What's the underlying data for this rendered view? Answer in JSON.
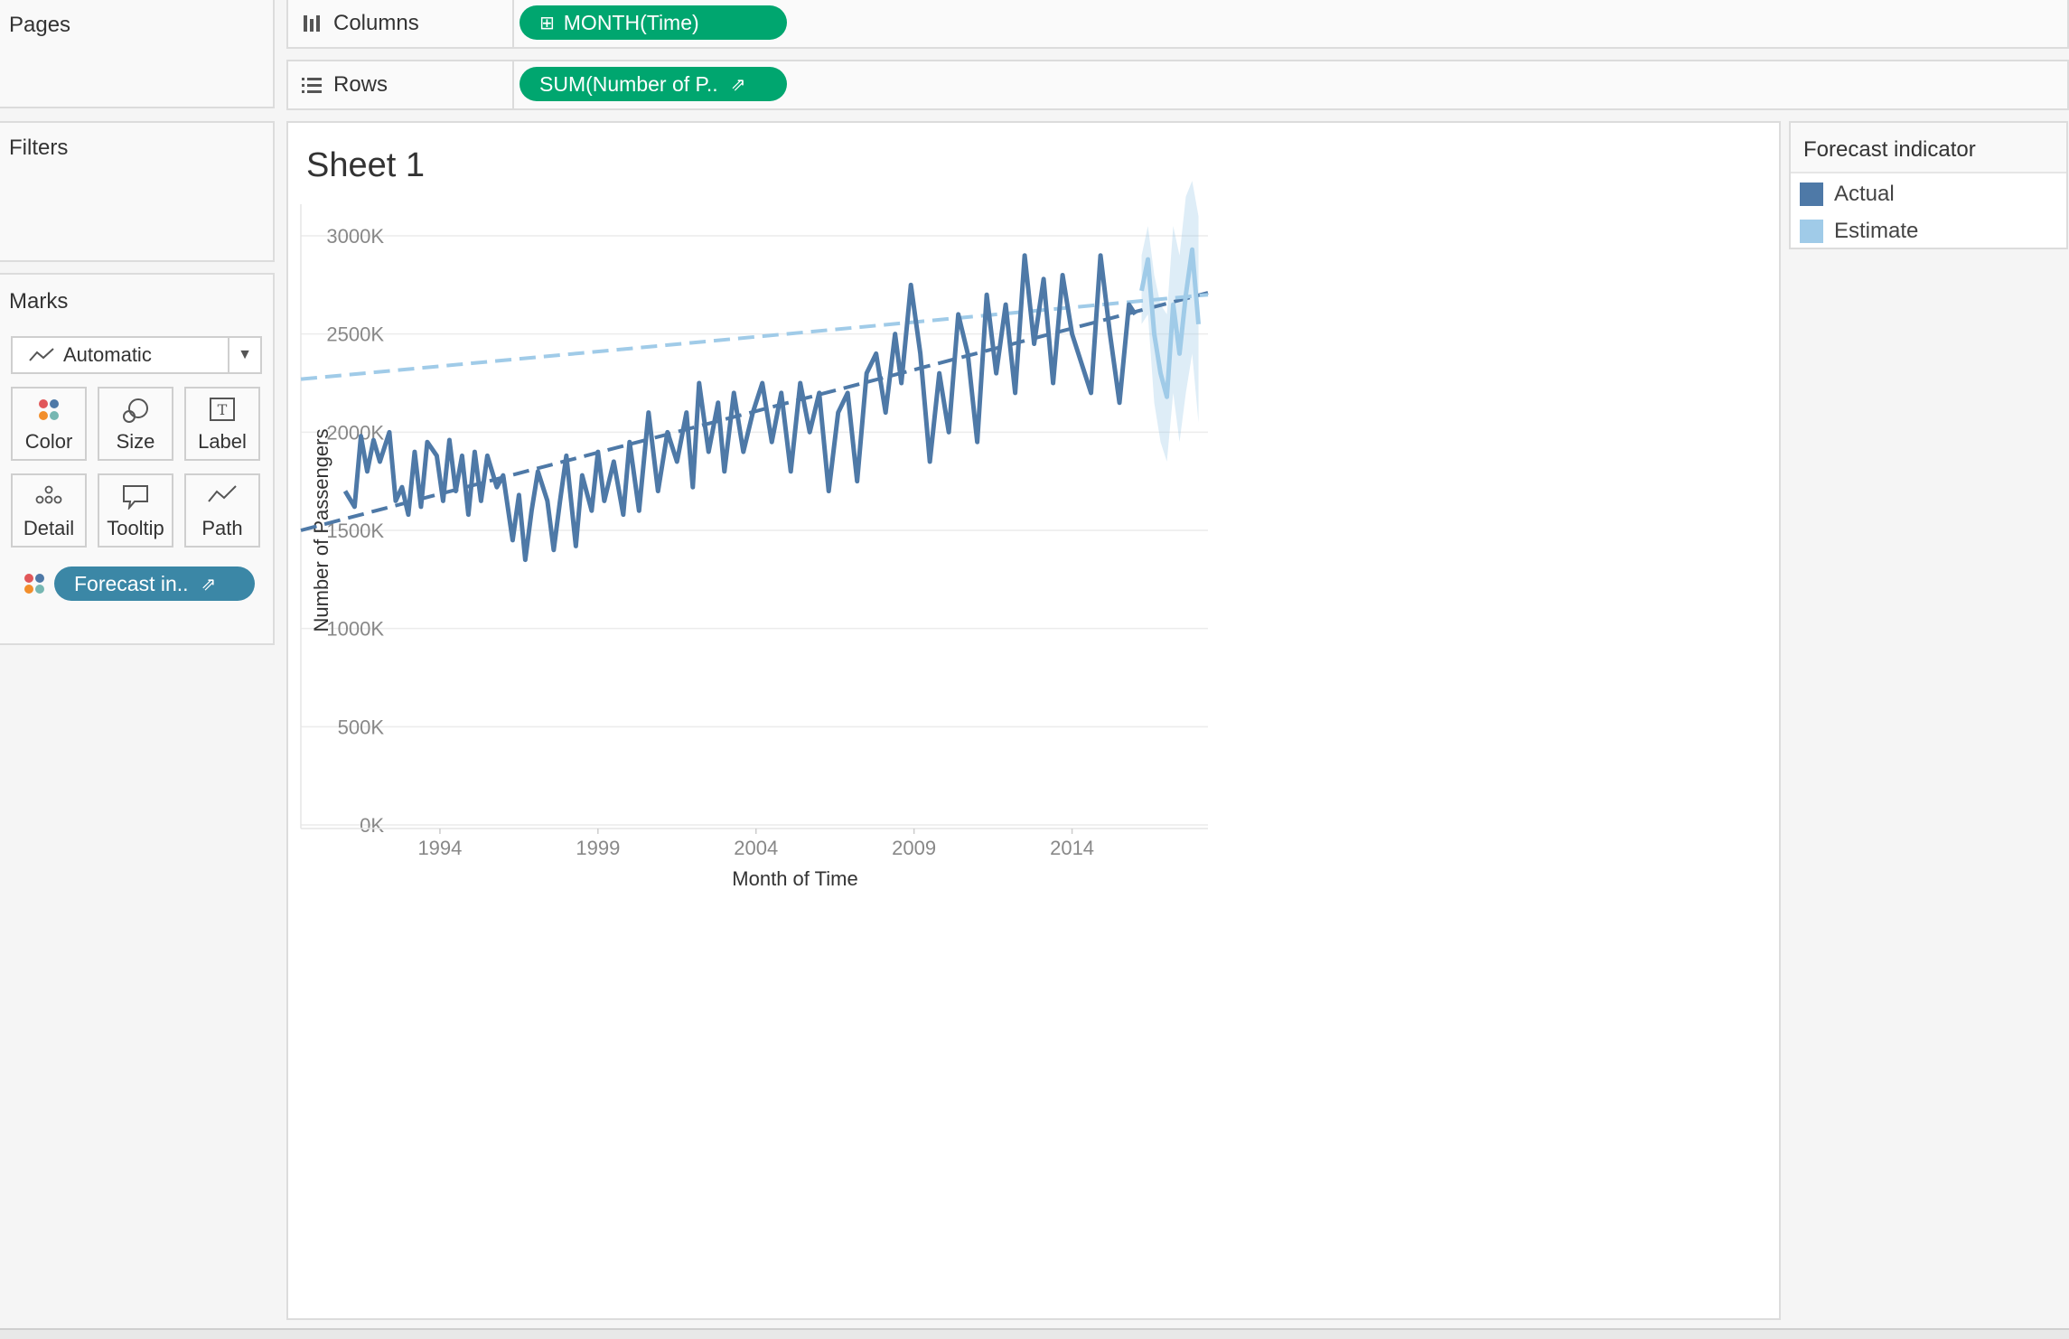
{
  "pages": {
    "title": "Pages"
  },
  "filters": {
    "title": "Filters"
  },
  "marks": {
    "title": "Marks",
    "mark_type": "Automatic",
    "buttons": [
      {
        "label": "Color",
        "icon": "color-dots-icon"
      },
      {
        "label": "Size",
        "icon": "size-circles-icon"
      },
      {
        "label": "Label",
        "icon": "text-label-icon"
      },
      {
        "label": "Detail",
        "icon": "detail-dots-icon"
      },
      {
        "label": "Tooltip",
        "icon": "tooltip-bubble-icon"
      },
      {
        "label": "Path",
        "icon": "path-line-icon"
      }
    ],
    "color_field": "Forecast in.."
  },
  "shelves": {
    "columns": {
      "label": "Columns",
      "pill": "MONTH(Time)"
    },
    "rows": {
      "label": "Rows",
      "pill": "SUM(Number of P.."
    }
  },
  "colors": {
    "pill_green": "#00a66f",
    "pill_blue": "#3b87a6",
    "actual": "#4e79a7",
    "estimate": "#a0cbe8"
  },
  "legend": {
    "title": "Forecast indicator",
    "items": [
      {
        "label": "Actual",
        "color": "#4e79a7"
      },
      {
        "label": "Estimate",
        "color": "#a0cbe8"
      }
    ]
  },
  "sheet": {
    "title": "Sheet 1"
  },
  "chart_data": {
    "type": "line",
    "title": "Sheet 1",
    "xlabel": "Month of Time",
    "ylabel": "Number of Passengers",
    "x_ticks": [
      "1994",
      "1999",
      "2004",
      "2009",
      "2014"
    ],
    "y_ticks": [
      "0K",
      "500K",
      "1000K",
      "1500K",
      "2000K",
      "2500K",
      "3000K"
    ],
    "xlim": [
      1989.6,
      2018.3
    ],
    "ylim": [
      0,
      3000000
    ],
    "grid": true,
    "legend_position": "right",
    "series": [
      {
        "name": "Actual",
        "color": "#4e79a7",
        "points": [
          [
            1991.0,
            1700000
          ],
          [
            1991.3,
            1620000
          ],
          [
            1991.5,
            1980000
          ],
          [
            1991.7,
            1800000
          ],
          [
            1991.9,
            1960000
          ],
          [
            1992.1,
            1850000
          ],
          [
            1992.4,
            2000000
          ],
          [
            1992.6,
            1650000
          ],
          [
            1992.8,
            1720000
          ],
          [
            1993.0,
            1580000
          ],
          [
            1993.2,
            1900000
          ],
          [
            1993.4,
            1620000
          ],
          [
            1993.6,
            1950000
          ],
          [
            1993.9,
            1880000
          ],
          [
            1994.1,
            1650000
          ],
          [
            1994.3,
            1960000
          ],
          [
            1994.5,
            1700000
          ],
          [
            1994.7,
            1880000
          ],
          [
            1994.9,
            1580000
          ],
          [
            1995.1,
            1900000
          ],
          [
            1995.3,
            1650000
          ],
          [
            1995.5,
            1880000
          ],
          [
            1995.8,
            1720000
          ],
          [
            1996.0,
            1780000
          ],
          [
            1996.3,
            1450000
          ],
          [
            1996.5,
            1680000
          ],
          [
            1996.7,
            1350000
          ],
          [
            1996.9,
            1600000
          ],
          [
            1997.1,
            1800000
          ],
          [
            1997.4,
            1650000
          ],
          [
            1997.6,
            1400000
          ],
          [
            1997.8,
            1650000
          ],
          [
            1998.0,
            1880000
          ],
          [
            1998.3,
            1420000
          ],
          [
            1998.5,
            1780000
          ],
          [
            1998.8,
            1600000
          ],
          [
            1999.0,
            1900000
          ],
          [
            1999.2,
            1650000
          ],
          [
            1999.5,
            1850000
          ],
          [
            1999.8,
            1580000
          ],
          [
            2000.0,
            1950000
          ],
          [
            2000.3,
            1600000
          ],
          [
            2000.6,
            2100000
          ],
          [
            2000.9,
            1700000
          ],
          [
            2001.2,
            2000000
          ],
          [
            2001.5,
            1850000
          ],
          [
            2001.8,
            2100000
          ],
          [
            2002.0,
            1720000
          ],
          [
            2002.2,
            2250000
          ],
          [
            2002.5,
            1900000
          ],
          [
            2002.8,
            2150000
          ],
          [
            2003.0,
            1800000
          ],
          [
            2003.3,
            2200000
          ],
          [
            2003.6,
            1900000
          ],
          [
            2003.9,
            2100000
          ],
          [
            2004.2,
            2250000
          ],
          [
            2004.5,
            1950000
          ],
          [
            2004.8,
            2200000
          ],
          [
            2005.1,
            1800000
          ],
          [
            2005.4,
            2250000
          ],
          [
            2005.7,
            2000000
          ],
          [
            2006.0,
            2200000
          ],
          [
            2006.3,
            1700000
          ],
          [
            2006.6,
            2100000
          ],
          [
            2006.9,
            2200000
          ],
          [
            2007.2,
            1750000
          ],
          [
            2007.5,
            2300000
          ],
          [
            2007.8,
            2400000
          ],
          [
            2008.1,
            2100000
          ],
          [
            2008.4,
            2500000
          ],
          [
            2008.6,
            2250000
          ],
          [
            2008.9,
            2750000
          ],
          [
            2009.2,
            2400000
          ],
          [
            2009.5,
            1850000
          ],
          [
            2009.8,
            2300000
          ],
          [
            2010.1,
            2000000
          ],
          [
            2010.4,
            2600000
          ],
          [
            2010.7,
            2400000
          ],
          [
            2011.0,
            1950000
          ],
          [
            2011.3,
            2700000
          ],
          [
            2011.6,
            2300000
          ],
          [
            2011.9,
            2650000
          ],
          [
            2012.2,
            2200000
          ],
          [
            2012.5,
            2900000
          ],
          [
            2012.8,
            2450000
          ],
          [
            2013.1,
            2780000
          ],
          [
            2013.4,
            2250000
          ],
          [
            2013.7,
            2800000
          ],
          [
            2014.0,
            2500000
          ],
          [
            2014.3,
            2350000
          ],
          [
            2014.6,
            2200000
          ],
          [
            2014.9,
            2900000
          ],
          [
            2015.2,
            2500000
          ],
          [
            2015.5,
            2150000
          ],
          [
            2015.8,
            2650000
          ],
          [
            2016.0,
            2600000
          ]
        ]
      },
      {
        "name": "Estimate",
        "color": "#a0cbe8",
        "points": [
          [
            2016.2,
            2720000
          ],
          [
            2016.4,
            2880000
          ],
          [
            2016.6,
            2500000
          ],
          [
            2016.8,
            2300000
          ],
          [
            2017.0,
            2180000
          ],
          [
            2017.2,
            2650000
          ],
          [
            2017.4,
            2400000
          ],
          [
            2017.6,
            2700000
          ],
          [
            2017.8,
            2930000
          ],
          [
            2018.0,
            2550000
          ]
        ],
        "band": [
          [
            2016.2,
            2550000,
            2900000
          ],
          [
            2016.4,
            2600000,
            3050000
          ],
          [
            2016.6,
            2150000,
            2800000
          ],
          [
            2016.8,
            1950000,
            2650000
          ],
          [
            2017.0,
            1850000,
            2600000
          ],
          [
            2017.2,
            2200000,
            3050000
          ],
          [
            2017.4,
            1950000,
            2900000
          ],
          [
            2017.6,
            2200000,
            3200000
          ],
          [
            2017.8,
            2400000,
            3280000
          ],
          [
            2018.0,
            2050000,
            3100000
          ]
        ]
      }
    ],
    "trend_lines": [
      {
        "series": "Actual",
        "from": [
          1989.6,
          1500000
        ],
        "to": [
          2018.3,
          2710000
        ]
      },
      {
        "series": "Estimate",
        "from": [
          1989.6,
          2270000
        ],
        "to": [
          2018.3,
          2700000
        ]
      }
    ]
  }
}
